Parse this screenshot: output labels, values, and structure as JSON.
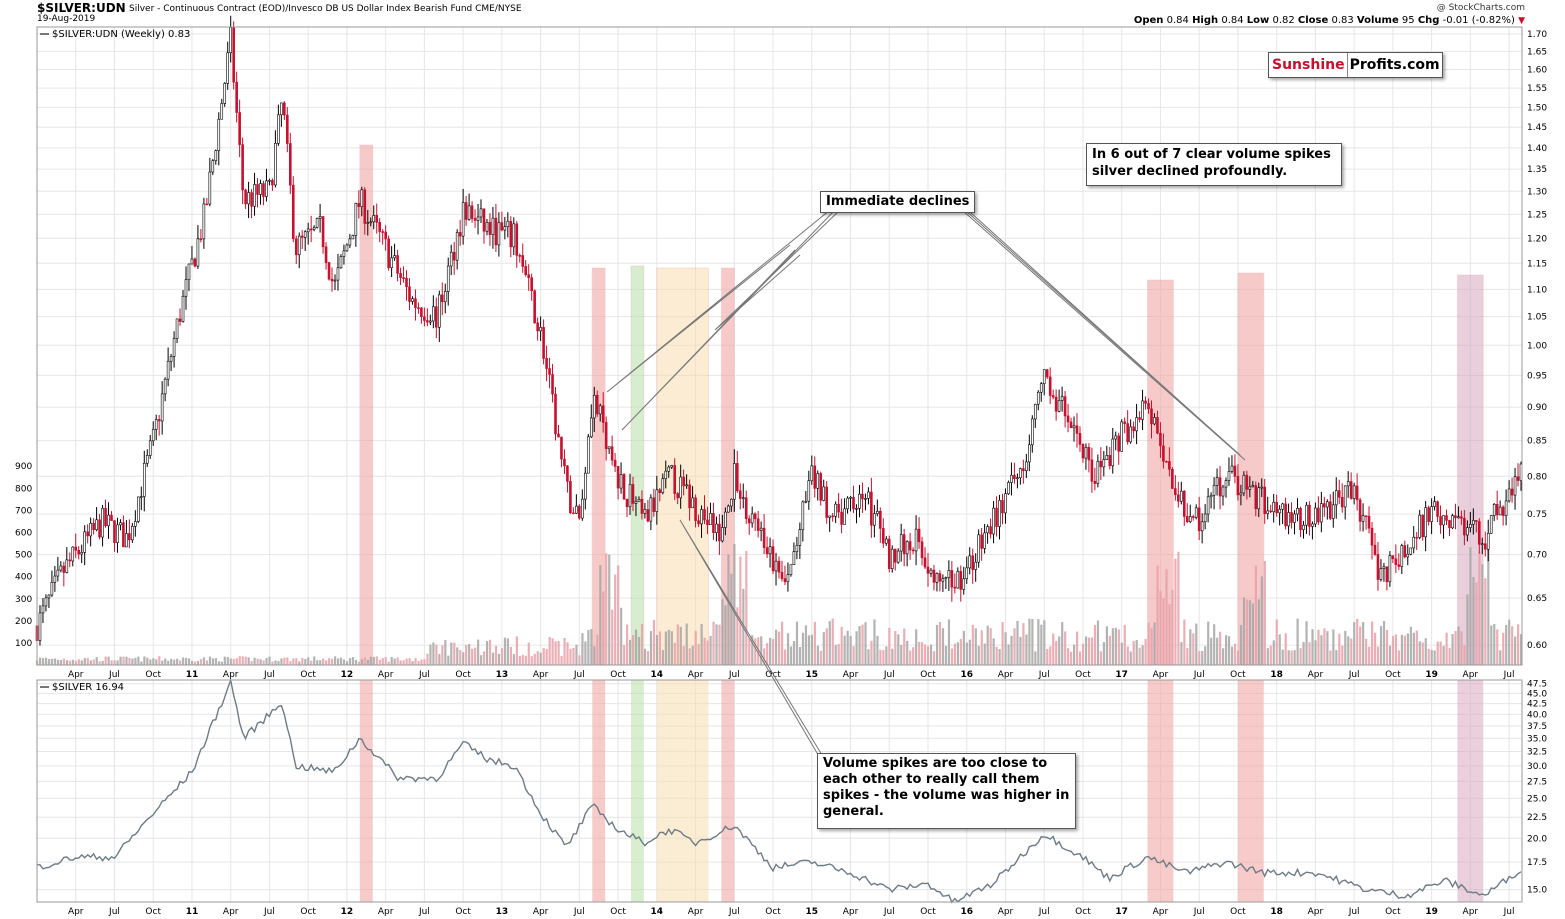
{
  "header": {
    "symbol": "$SILVER:UDN",
    "description": "Silver - Continuous Contract (EOD)/Invesco DB US Dollar Index Bearish Fund  CME/NYSE",
    "date": "19-Aug-2019",
    "copyright": "@ StockCharts.com",
    "ohlc": {
      "open_label": "Open",
      "open": "0.84",
      "high_label": "High",
      "high": "0.84",
      "low_label": "Low",
      "low": "0.82",
      "close_label": "Close",
      "close": "0.83",
      "volume_label": "Volume",
      "volume": "95",
      "chg_label": "Chg",
      "chg": "-0.01 (-0.82%)"
    }
  },
  "panel_labels": {
    "top": "$SILVER:UDN (Weekly) 0.83",
    "bottom": "$SILVER 16.94"
  },
  "annotations": {
    "logo_red": "Sunshine",
    "logo_black": "Profits.com",
    "six_of_seven_line1": "In 6 out of 7 clear volume spikes",
    "six_of_seven_line2": "silver declined profoundly.",
    "immediate": "Immediate declines",
    "vol_line1": "Volume spikes are too close to",
    "vol_line2": "each other to really call them",
    "vol_line3": "spikes - the volume was higher in",
    "vol_line4": "general."
  },
  "colors": {
    "up_bar": "#000000",
    "down_bar": "#c8102e",
    "volume_up": "#a6a6a6",
    "volume_down": "#e8a0a8",
    "silver_line": "#6e7b85",
    "highlight_red": "#f2a0a0",
    "highlight_green": "#b8e0a8",
    "highlight_orange": "#f8ddb0",
    "highlight_purple": "#d8a8c0",
    "grid": "#e6e6e6",
    "logo_red": "#c8102e"
  },
  "chart_data": [
    {
      "type": "candlestick",
      "title": "$SILVER:UDN (Weekly)",
      "y_ticks": [
        "0.60",
        "0.65",
        "0.70",
        "0.75",
        "0.80",
        "0.85",
        "0.90",
        "0.95",
        "1.00",
        "1.05",
        "1.10",
        "1.15",
        "1.20",
        "1.25",
        "1.30",
        "1.35",
        "1.40",
        "1.45",
        "1.50",
        "1.55",
        "1.60",
        "1.65",
        "1.70"
      ],
      "ylim": [
        0.58,
        1.72
      ],
      "y_scale": "log",
      "volume_ticks": [
        "100",
        "200",
        "300",
        "400",
        "500",
        "600",
        "700",
        "800",
        "900"
      ],
      "x_ticks": [
        "Apr",
        "Jul",
        "Oct",
        "11",
        "Apr",
        "Jul",
        "Oct",
        "12",
        "Apr",
        "Jul",
        "Oct",
        "13",
        "Apr",
        "Jul",
        "Oct",
        "14",
        "Apr",
        "Jul",
        "Oct",
        "15",
        "Apr",
        "Jul",
        "Oct",
        "16",
        "Apr",
        "Jul",
        "Oct",
        "17",
        "Apr",
        "Jul",
        "Oct",
        "18",
        "Apr",
        "Jul",
        "Oct",
        "19",
        "Apr",
        "Jul"
      ],
      "x_ticks_bold": [
        "11",
        "12",
        "13",
        "14",
        "15",
        "16",
        "17",
        "18",
        "19"
      ],
      "x_range": [
        "2010-01",
        "2019-08"
      ],
      "price_anchors": [
        {
          "date": "2010-01",
          "value": 0.62
        },
        {
          "date": "2010-03",
          "value": 0.68
        },
        {
          "date": "2010-06",
          "value": 0.74
        },
        {
          "date": "2010-08",
          "value": 0.72
        },
        {
          "date": "2010-10",
          "value": 0.85
        },
        {
          "date": "2010-12",
          "value": 1.05
        },
        {
          "date": "2011-02",
          "value": 1.25
        },
        {
          "date": "2011-04",
          "value": 1.68
        },
        {
          "date": "2011-05",
          "value": 1.28
        },
        {
          "date": "2011-07",
          "value": 1.3
        },
        {
          "date": "2011-08",
          "value": 1.52
        },
        {
          "date": "2011-09",
          "value": 1.18
        },
        {
          "date": "2011-11",
          "value": 1.22
        },
        {
          "date": "2011-12",
          "value": 1.1
        },
        {
          "date": "2012-02",
          "value": 1.28
        },
        {
          "date": "2012-04",
          "value": 1.18
        },
        {
          "date": "2012-06",
          "value": 1.08
        },
        {
          "date": "2012-08",
          "value": 1.05
        },
        {
          "date": "2012-10",
          "value": 1.26
        },
        {
          "date": "2012-12",
          "value": 1.22
        },
        {
          "date": "2013-02",
          "value": 1.2
        },
        {
          "date": "2013-04",
          "value": 1.02
        },
        {
          "date": "2013-06",
          "value": 0.78
        },
        {
          "date": "2013-07",
          "value": 0.74
        },
        {
          "date": "2013-08",
          "value": 0.92
        },
        {
          "date": "2013-10",
          "value": 0.8
        },
        {
          "date": "2013-12",
          "value": 0.74
        },
        {
          "date": "2014-02",
          "value": 0.8
        },
        {
          "date": "2014-04",
          "value": 0.76
        },
        {
          "date": "2014-06",
          "value": 0.72
        },
        {
          "date": "2014-07",
          "value": 0.8
        },
        {
          "date": "2014-09",
          "value": 0.72
        },
        {
          "date": "2014-11",
          "value": 0.66
        },
        {
          "date": "2015-01",
          "value": 0.8
        },
        {
          "date": "2015-03",
          "value": 0.74
        },
        {
          "date": "2015-05",
          "value": 0.78
        },
        {
          "date": "2015-07",
          "value": 0.7
        },
        {
          "date": "2015-09",
          "value": 0.72
        },
        {
          "date": "2015-11",
          "value": 0.66
        },
        {
          "date": "2016-01",
          "value": 0.68
        },
        {
          "date": "2016-03",
          "value": 0.74
        },
        {
          "date": "2016-05",
          "value": 0.8
        },
        {
          "date": "2016-07",
          "value": 0.94
        },
        {
          "date": "2016-09",
          "value": 0.88
        },
        {
          "date": "2016-11",
          "value": 0.8
        },
        {
          "date": "2017-01",
          "value": 0.86
        },
        {
          "date": "2017-03",
          "value": 0.9
        },
        {
          "date": "2017-05",
          "value": 0.78
        },
        {
          "date": "2017-07",
          "value": 0.74
        },
        {
          "date": "2017-09",
          "value": 0.8
        },
        {
          "date": "2017-11",
          "value": 0.78
        },
        {
          "date": "2018-01",
          "value": 0.76
        },
        {
          "date": "2018-03",
          "value": 0.74
        },
        {
          "date": "2018-05",
          "value": 0.76
        },
        {
          "date": "2018-07",
          "value": 0.78
        },
        {
          "date": "2018-09",
          "value": 0.68
        },
        {
          "date": "2018-11",
          "value": 0.7
        },
        {
          "date": "2019-01",
          "value": 0.76
        },
        {
          "date": "2019-03",
          "value": 0.74
        },
        {
          "date": "2019-05",
          "value": 0.72
        },
        {
          "date": "2019-07",
          "value": 0.78
        },
        {
          "date": "2019-08",
          "value": 0.83
        }
      ],
      "highlight_bands": [
        {
          "start": "2012-02",
          "end": "2012-03",
          "color": "red"
        },
        {
          "start": "2013-08",
          "end": "2013-09",
          "color": "red"
        },
        {
          "start": "2013-11",
          "end": "2013-12",
          "color": "green"
        },
        {
          "start": "2014-01",
          "end": "2014-05",
          "color": "orange"
        },
        {
          "start": "2014-06",
          "end": "2014-07",
          "color": "red"
        },
        {
          "start": "2017-03",
          "end": "2017-05",
          "color": "red"
        },
        {
          "start": "2017-10",
          "end": "2017-12",
          "color": "red"
        },
        {
          "start": "2019-03",
          "end": "2019-05",
          "color": "purple"
        }
      ]
    },
    {
      "type": "line",
      "title": "$SILVER",
      "series": [
        {
          "name": "$SILVER",
          "last": 16.94
        }
      ],
      "y_ticks": [
        "15.0",
        "17.5",
        "20.0",
        "22.5",
        "25.0",
        "27.5",
        "30.0",
        "32.5",
        "35.0",
        "37.5",
        "40.0",
        "42.5",
        "45.0",
        "47.5"
      ],
      "ylim": [
        14.0,
        48.5
      ],
      "y_scale": "log",
      "points": [
        {
          "date": "2010-01",
          "value": 17.0
        },
        {
          "date": "2010-04",
          "value": 18.0
        },
        {
          "date": "2010-07",
          "value": 18.0
        },
        {
          "date": "2010-10",
          "value": 23.0
        },
        {
          "date": "2011-01",
          "value": 29.0
        },
        {
          "date": "2011-04",
          "value": 48.0
        },
        {
          "date": "2011-05",
          "value": 35.0
        },
        {
          "date": "2011-07",
          "value": 40.0
        },
        {
          "date": "2011-08",
          "value": 43.0
        },
        {
          "date": "2011-09",
          "value": 30.0
        },
        {
          "date": "2011-12",
          "value": 29.0
        },
        {
          "date": "2012-02",
          "value": 35.0
        },
        {
          "date": "2012-05",
          "value": 28.0
        },
        {
          "date": "2012-08",
          "value": 28.0
        },
        {
          "date": "2012-10",
          "value": 34.0
        },
        {
          "date": "2012-12",
          "value": 31.0
        },
        {
          "date": "2013-02",
          "value": 30.0
        },
        {
          "date": "2013-04",
          "value": 23.0
        },
        {
          "date": "2013-06",
          "value": 19.0
        },
        {
          "date": "2013-08",
          "value": 24.0
        },
        {
          "date": "2013-10",
          "value": 21.0
        },
        {
          "date": "2013-12",
          "value": 19.5
        },
        {
          "date": "2014-02",
          "value": 21.0
        },
        {
          "date": "2014-04",
          "value": 19.5
        },
        {
          "date": "2014-07",
          "value": 21.5
        },
        {
          "date": "2014-10",
          "value": 17.0
        },
        {
          "date": "2015-01",
          "value": 17.5
        },
        {
          "date": "2015-04",
          "value": 16.5
        },
        {
          "date": "2015-07",
          "value": 15.0
        },
        {
          "date": "2015-10",
          "value": 15.5
        },
        {
          "date": "2015-12",
          "value": 14.0
        },
        {
          "date": "2016-03",
          "value": 15.5
        },
        {
          "date": "2016-07",
          "value": 20.5
        },
        {
          "date": "2016-10",
          "value": 18.0
        },
        {
          "date": "2016-12",
          "value": 16.0
        },
        {
          "date": "2017-03",
          "value": 18.0
        },
        {
          "date": "2017-06",
          "value": 16.5
        },
        {
          "date": "2017-09",
          "value": 17.5
        },
        {
          "date": "2017-12",
          "value": 16.5
        },
        {
          "date": "2018-04",
          "value": 16.5
        },
        {
          "date": "2018-08",
          "value": 15.0
        },
        {
          "date": "2018-11",
          "value": 14.5
        },
        {
          "date": "2019-02",
          "value": 15.8
        },
        {
          "date": "2019-05",
          "value": 14.5
        },
        {
          "date": "2019-07",
          "value": 16.0
        },
        {
          "date": "2019-08",
          "value": 16.94
        }
      ]
    }
  ]
}
